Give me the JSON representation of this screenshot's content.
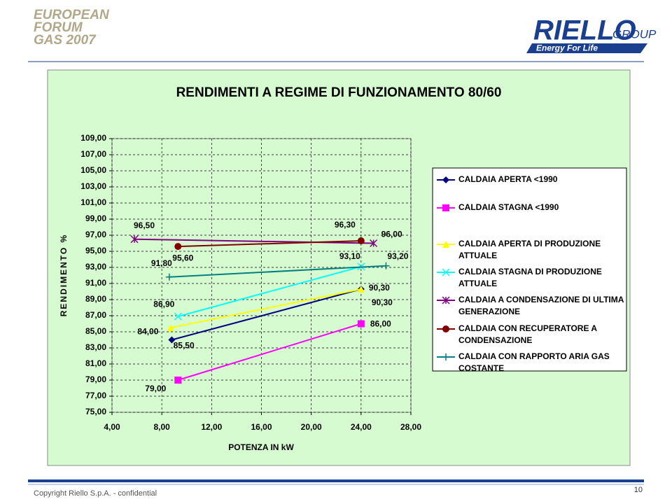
{
  "header": {
    "event_lines": [
      "EUROPEAN",
      "FORUM",
      "GAS 2007"
    ],
    "brand": "RIELLO",
    "brand_suffix": "GROUP",
    "tagline": "Energy For Life"
  },
  "footer": {
    "copyright": "Copyright  Riello S.p.A. - confidential",
    "page": "10"
  },
  "chart_data": {
    "type": "line",
    "title": "RENDIMENTI A REGIME DI FUNZIONAMENTO 80/60",
    "x_label": "POTENZA IN kW",
    "y_label": "RENDIMENTO %",
    "xlim": [
      4,
      28
    ],
    "xticks": [
      {
        "value": 4,
        "label": "4,00"
      },
      {
        "value": 8,
        "label": "8,00"
      },
      {
        "value": 12,
        "label": "12,00"
      },
      {
        "value": 16,
        "label": "16,00"
      },
      {
        "value": 20,
        "label": "20,00"
      },
      {
        "value": 24,
        "label": "24,00"
      },
      {
        "value": 28,
        "label": "28,00"
      }
    ],
    "ylim": [
      75,
      109
    ],
    "yticks": [
      {
        "value": 75,
        "label": "75,00"
      },
      {
        "value": 77,
        "label": "77,00"
      },
      {
        "value": 79,
        "label": "79,00"
      },
      {
        "value": 81,
        "label": "81,00"
      },
      {
        "value": 83,
        "label": "83,00"
      },
      {
        "value": 85,
        "label": "85,00"
      },
      {
        "value": 87,
        "label": "87,00"
      },
      {
        "value": 89,
        "label": "89,00"
      },
      {
        "value": 91,
        "label": "91,00"
      },
      {
        "value": 93,
        "label": "93,00"
      },
      {
        "value": 95,
        "label": "95,00"
      },
      {
        "value": 97,
        "label": "97,00"
      },
      {
        "value": 99,
        "label": "99,00"
      },
      {
        "value": 101,
        "label": "101,00"
      },
      {
        "value": 103,
        "label": "103,00"
      },
      {
        "value": 105,
        "label": "105,00"
      },
      {
        "value": 107,
        "label": "107,00"
      },
      {
        "value": 109,
        "label": "109,00"
      }
    ],
    "grid": true,
    "series": [
      {
        "name": "CALDAIA APERTA <1990",
        "color": "#000080",
        "marker": "diamond",
        "x": [
          8.8,
          24
        ],
        "values": [
          84.0,
          90.3
        ],
        "value_labels": [
          "84,00",
          "90,30"
        ]
      },
      {
        "name": "CALDAIA STAGNA <1990",
        "color": "#ff00ff",
        "marker": "square",
        "x": [
          9.3,
          24
        ],
        "values": [
          79.0,
          86.0
        ],
        "value_labels": [
          "79,00",
          "86,00"
        ]
      },
      {
        "name": "CALDAIA APERTA DI PRODUZIONE ATTUALE",
        "color": "#ffff00",
        "marker": "triangle",
        "x": [
          8.7,
          24
        ],
        "values": [
          85.5,
          90.3
        ],
        "value_labels": [
          "85,50",
          "90,30"
        ]
      },
      {
        "name": "CALDAIA STAGNA DI PRODUZIONE ATTUALE",
        "color": "#00ffff",
        "marker": "x",
        "x": [
          9.3,
          24
        ],
        "values": [
          86.9,
          93.1
        ],
        "value_labels": [
          "86,90",
          "93,10"
        ]
      },
      {
        "name": "CALDAIA A CONDENSAZIONE DI ULTIMA GENERAZIONE",
        "color": "#800080",
        "marker": "star",
        "x": [
          5.8,
          25
        ],
        "values": [
          96.5,
          96.0
        ],
        "value_labels": [
          "96,50",
          "96,00"
        ]
      },
      {
        "name": "CALDAIA CON RECUPERATORE A CONDENSAZIONE",
        "color": "#800000",
        "marker": "circle",
        "x": [
          9.3,
          24
        ],
        "values": [
          95.6,
          96.3
        ],
        "value_labels": [
          "95,60",
          "96,30"
        ]
      },
      {
        "name": "CALDAIA CON RAPPORTO ARIA GAS COSTANTE",
        "color": "#008080",
        "marker": "plus",
        "x": [
          8.6,
          26
        ],
        "values": [
          91.8,
          93.2
        ],
        "value_labels": [
          "91,80",
          "93,20"
        ]
      }
    ]
  }
}
